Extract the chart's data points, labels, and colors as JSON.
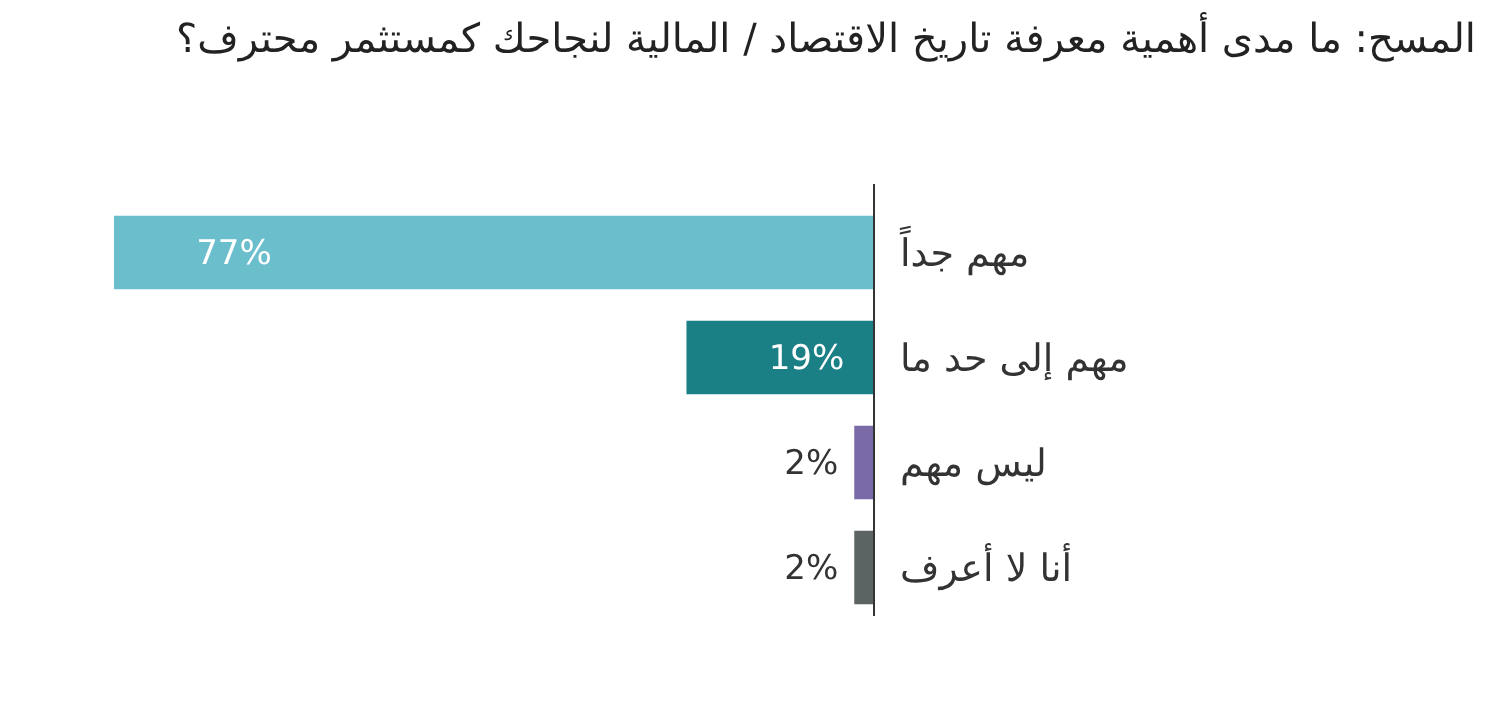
{
  "chart_data": {
    "type": "bar",
    "orientation": "horizontal",
    "title": "المسح: ما مدى أهمية معرفة تاريخ الاقتصاد / المالية لنجاحك كمستثمر محترف؟",
    "categories": [
      "مهم جداً",
      "مهم إلى حد ما",
      "ليس مهم",
      "أنا لا أعرف"
    ],
    "values": [
      77,
      19,
      2,
      2
    ],
    "colors": [
      "#6bbfcc",
      "#1b7f86",
      "#7b6aa8",
      "#5c6363"
    ],
    "value_labels": [
      "77%",
      "19%",
      "2%",
      "2%"
    ]
  }
}
